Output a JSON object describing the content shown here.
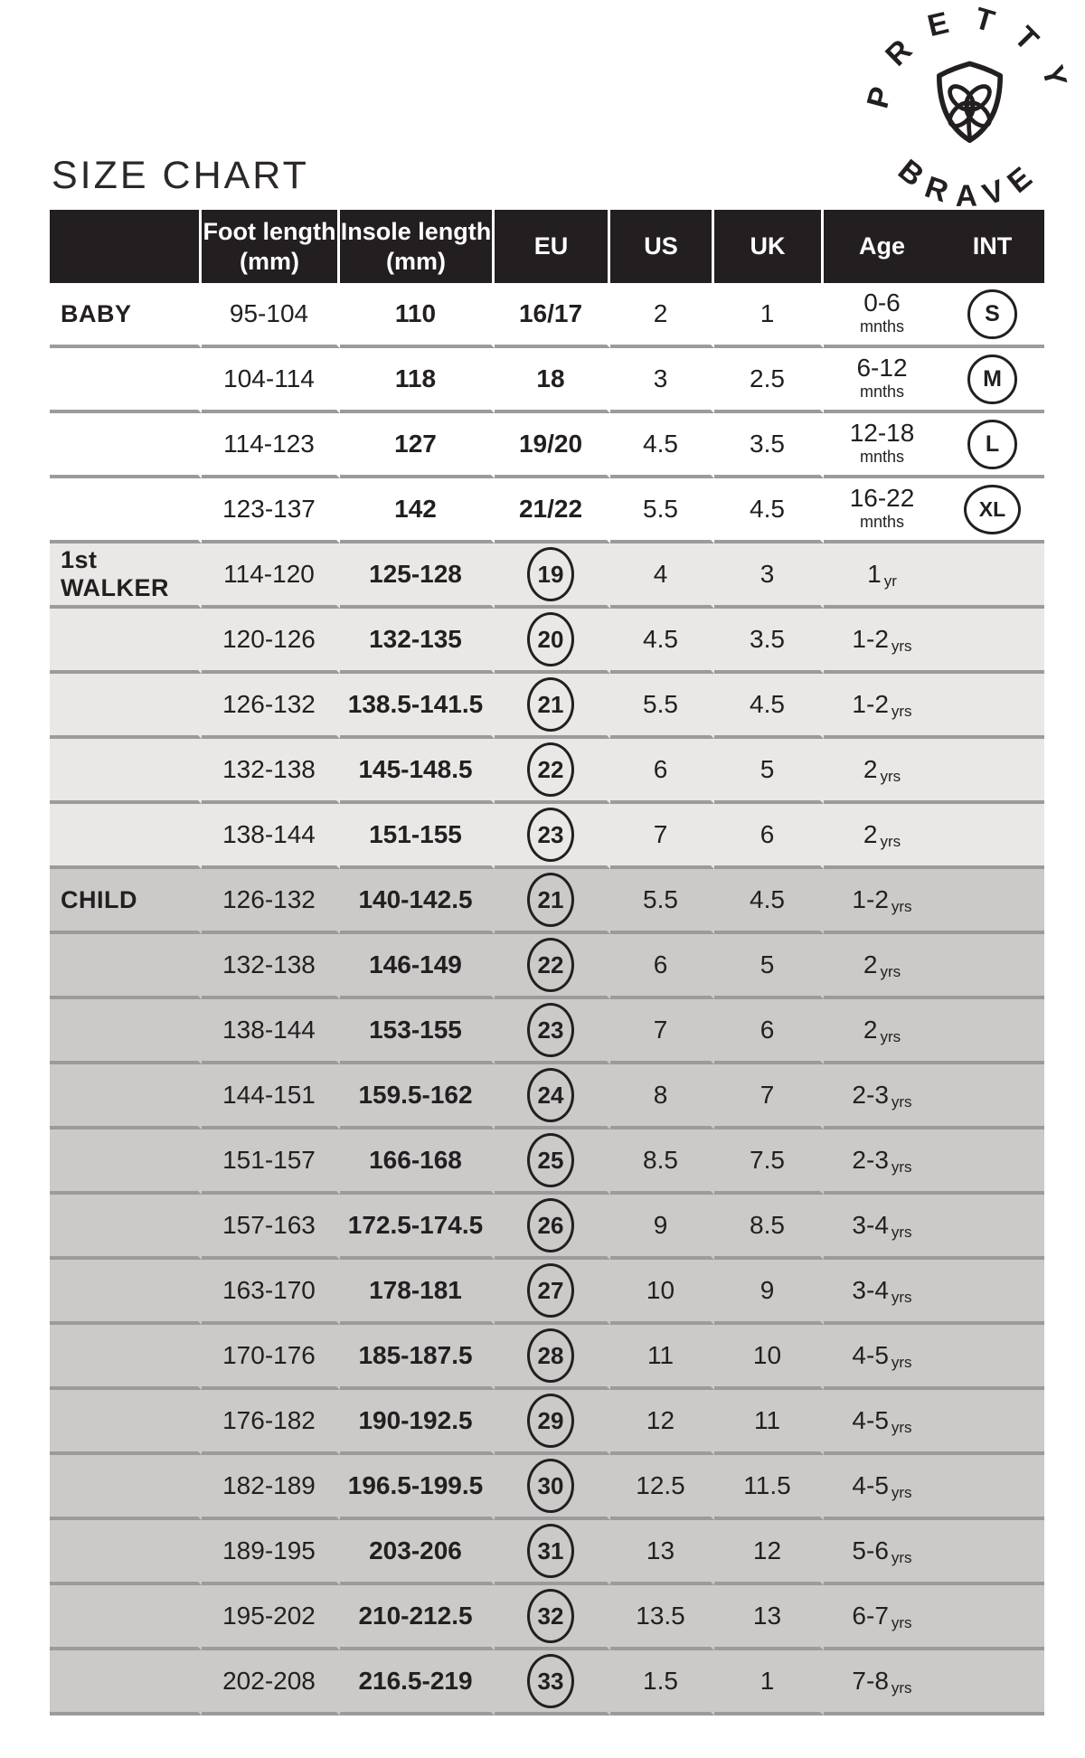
{
  "page": {
    "title": "SIZE CHART"
  },
  "logo": {
    "arc_top": "PRETTY",
    "arc_bottom": "BRAVE",
    "icon": "shield-clover"
  },
  "colors": {
    "header_bg": "#231f20",
    "header_text": "#ffffff",
    "text": "#231f20",
    "separator": "#9c9b9b",
    "section_baby_bg": "#ffffff",
    "section_walker_bg": "#e9e8e7",
    "section_child_bg": "#cbcac9"
  },
  "table": {
    "columns": [
      {
        "key": "group",
        "line1": "",
        "line2": ""
      },
      {
        "key": "foot",
        "line1": "Foot length",
        "line2": "(mm)"
      },
      {
        "key": "insole",
        "line1": "Insole length",
        "line2": "(mm)"
      },
      {
        "key": "eu",
        "line1": "EU",
        "line2": ""
      },
      {
        "key": "us",
        "line1": "US",
        "line2": ""
      },
      {
        "key": "uk",
        "line1": "UK",
        "line2": ""
      },
      {
        "key": "age",
        "line1": "Age",
        "line2": ""
      },
      {
        "key": "int",
        "line1": "INT",
        "line2": ""
      }
    ],
    "sections": [
      {
        "name": "BABY",
        "bg_key": "section_baby_bg",
        "rows": [
          {
            "foot": "95-104",
            "insole": "110",
            "eu": "16/17",
            "eu_circled": false,
            "us": "2",
            "uk": "1",
            "age": "0-6",
            "age_unit": "mnths",
            "age_stacked": true,
            "int": "S"
          },
          {
            "foot": "104-114",
            "insole": "118",
            "eu": "18",
            "eu_circled": false,
            "us": "3",
            "uk": "2.5",
            "age": "6-12",
            "age_unit": "mnths",
            "age_stacked": true,
            "int": "M"
          },
          {
            "foot": "114-123",
            "insole": "127",
            "eu": "19/20",
            "eu_circled": false,
            "us": "4.5",
            "uk": "3.5",
            "age": "12-18",
            "age_unit": "mnths",
            "age_stacked": true,
            "int": "L"
          },
          {
            "foot": "123-137",
            "insole": "142",
            "eu": "21/22",
            "eu_circled": false,
            "us": "5.5",
            "uk": "4.5",
            "age": "16-22",
            "age_unit": "mnths",
            "age_stacked": true,
            "int": "XL"
          }
        ]
      },
      {
        "name": "1st WALKER",
        "bg_key": "section_walker_bg",
        "rows": [
          {
            "foot": "114-120",
            "insole": "125-128",
            "eu": "19",
            "eu_circled": true,
            "us": "4",
            "uk": "3",
            "age": "1",
            "age_unit": "yr",
            "age_stacked": false,
            "int": ""
          },
          {
            "foot": "120-126",
            "insole": "132-135",
            "eu": "20",
            "eu_circled": true,
            "us": "4.5",
            "uk": "3.5",
            "age": "1-2",
            "age_unit": "yrs",
            "age_stacked": false,
            "int": ""
          },
          {
            "foot": "126-132",
            "insole": "138.5-141.5",
            "eu": "21",
            "eu_circled": true,
            "us": "5.5",
            "uk": "4.5",
            "age": "1-2",
            "age_unit": "yrs",
            "age_stacked": false,
            "int": ""
          },
          {
            "foot": "132-138",
            "insole": "145-148.5",
            "eu": "22",
            "eu_circled": true,
            "us": "6",
            "uk": "5",
            "age": "2",
            "age_unit": "yrs",
            "age_stacked": false,
            "int": ""
          },
          {
            "foot": "138-144",
            "insole": "151-155",
            "eu": "23",
            "eu_circled": true,
            "us": "7",
            "uk": "6",
            "age": "2",
            "age_unit": "yrs",
            "age_stacked": false,
            "int": ""
          }
        ]
      },
      {
        "name": "CHILD",
        "bg_key": "section_child_bg",
        "rows": [
          {
            "foot": "126-132",
            "insole": "140-142.5",
            "eu": "21",
            "eu_circled": true,
            "us": "5.5",
            "uk": "4.5",
            "age": "1-2",
            "age_unit": "yrs",
            "age_stacked": false,
            "int": ""
          },
          {
            "foot": "132-138",
            "insole": "146-149",
            "eu": "22",
            "eu_circled": true,
            "us": "6",
            "uk": "5",
            "age": "2",
            "age_unit": "yrs",
            "age_stacked": false,
            "int": ""
          },
          {
            "foot": "138-144",
            "insole": "153-155",
            "eu": "23",
            "eu_circled": true,
            "us": "7",
            "uk": "6",
            "age": "2",
            "age_unit": "yrs",
            "age_stacked": false,
            "int": ""
          },
          {
            "foot": "144-151",
            "insole": "159.5-162",
            "eu": "24",
            "eu_circled": true,
            "us": "8",
            "uk": "7",
            "age": "2-3",
            "age_unit": "yrs",
            "age_stacked": false,
            "int": ""
          },
          {
            "foot": "151-157",
            "insole": "166-168",
            "eu": "25",
            "eu_circled": true,
            "us": "8.5",
            "uk": "7.5",
            "age": "2-3",
            "age_unit": "yrs",
            "age_stacked": false,
            "int": ""
          },
          {
            "foot": "157-163",
            "insole": "172.5-174.5",
            "eu": "26",
            "eu_circled": true,
            "us": "9",
            "uk": "8.5",
            "age": "3-4",
            "age_unit": "yrs",
            "age_stacked": false,
            "int": ""
          },
          {
            "foot": "163-170",
            "insole": "178-181",
            "eu": "27",
            "eu_circled": true,
            "us": "10",
            "uk": "9",
            "age": "3-4",
            "age_unit": "yrs",
            "age_stacked": false,
            "int": ""
          },
          {
            "foot": "170-176",
            "insole": "185-187.5",
            "eu": "28",
            "eu_circled": true,
            "us": "11",
            "uk": "10",
            "age": "4-5",
            "age_unit": "yrs",
            "age_stacked": false,
            "int": ""
          },
          {
            "foot": "176-182",
            "insole": "190-192.5",
            "eu": "29",
            "eu_circled": true,
            "us": "12",
            "uk": "11",
            "age": "4-5",
            "age_unit": "yrs",
            "age_stacked": false,
            "int": ""
          },
          {
            "foot": "182-189",
            "insole": "196.5-199.5",
            "eu": "30",
            "eu_circled": true,
            "us": "12.5",
            "uk": "11.5",
            "age": "4-5",
            "age_unit": "yrs",
            "age_stacked": false,
            "int": ""
          },
          {
            "foot": "189-195",
            "insole": "203-206",
            "eu": "31",
            "eu_circled": true,
            "us": "13",
            "uk": "12",
            "age": "5-6",
            "age_unit": "yrs",
            "age_stacked": false,
            "int": ""
          },
          {
            "foot": "195-202",
            "insole": "210-212.5",
            "eu": "32",
            "eu_circled": true,
            "us": "13.5",
            "uk": "13",
            "age": "6-7",
            "age_unit": "yrs",
            "age_stacked": false,
            "int": ""
          },
          {
            "foot": "202-208",
            "insole": "216.5-219",
            "eu": "33",
            "eu_circled": true,
            "us": "1.5",
            "uk": "1",
            "age": "7-8",
            "age_unit": "yrs",
            "age_stacked": false,
            "int": ""
          }
        ]
      }
    ]
  }
}
